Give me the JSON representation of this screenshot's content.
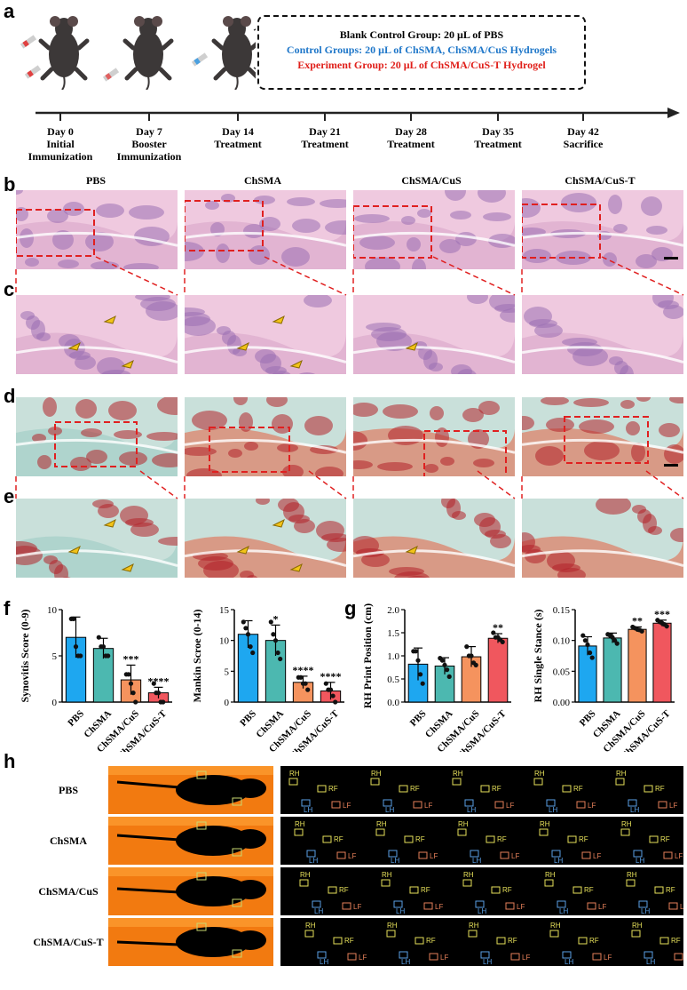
{
  "panel_labels": {
    "a": "a",
    "b": "b",
    "c": "c",
    "d": "d",
    "e": "e",
    "f": "f",
    "g": "g",
    "h": "h"
  },
  "groups_box": {
    "blank": "Blank Control Group: 20 μL of PBS",
    "control": "Control Groups: 20 μL of ChSMA, ChSMA/CuS Hydrogels",
    "experiment": "Experiment Group: 20 μL of ChSMA/CuS-T Hydrogel",
    "colors": {
      "blank": "#000000",
      "control": "#1f77c9",
      "experiment": "#e0201b"
    }
  },
  "timeline": [
    {
      "day": "Day 0",
      "event": "Initial Immunization"
    },
    {
      "day": "Day 7",
      "event": "Booster Immunization"
    },
    {
      "day": "Day 14",
      "event": "Treatment"
    },
    {
      "day": "Day 21",
      "event": "Treatment"
    },
    {
      "day": "Day 28",
      "event": "Treatment"
    },
    {
      "day": "Day 35",
      "event": "Treatment"
    },
    {
      "day": "Day 42",
      "event": "Sacrifice"
    }
  ],
  "histology_columns": [
    "PBS",
    "ChSMA",
    "ChSMA/CuS",
    "ChSMA/CuS-T"
  ],
  "gait_rows": [
    "PBS",
    "ChSMA",
    "ChSMA/CuS",
    "ChSMA/CuS-T"
  ],
  "gait_labels": {
    "rh": "RH",
    "rf": "RF",
    "lh": "LH",
    "lf": "LF"
  },
  "bar_colors": [
    "#1ea7f0",
    "#4cb8b0",
    "#f5935e",
    "#f0575e"
  ],
  "chart_data": [
    {
      "type": "bar",
      "ylabel": "Synovitis Score (0-9)",
      "categories": [
        "PBS",
        "ChSMA",
        "ChSMA/CuS",
        "ChSMA/CuS-T"
      ],
      "values": [
        7.0,
        5.8,
        2.4,
        1.0
      ],
      "errors": [
        2.2,
        1.1,
        1.6,
        0.6
      ],
      "ylim": [
        0,
        10
      ],
      "yticks": [
        0,
        5,
        10
      ],
      "significance": [
        "",
        "",
        "***",
        "****"
      ],
      "points": [
        [
          9,
          9,
          6,
          5,
          5
        ],
        [
          7,
          6,
          6,
          5,
          5
        ],
        [
          3,
          3,
          2,
          1,
          0
        ],
        [
          2,
          1,
          1,
          0,
          0
        ]
      ]
    },
    {
      "type": "bar",
      "ylabel": "Mankin Scroe (0-14)",
      "categories": [
        "PBS",
        "ChSMA",
        "ChSMA/CuS",
        "ChSMA/CuS-T"
      ],
      "values": [
        11.0,
        10.0,
        3.2,
        1.8
      ],
      "errors": [
        2.2,
        2.5,
        1.0,
        1.4
      ],
      "ylim": [
        0,
        15
      ],
      "yticks": [
        0,
        5,
        10,
        15
      ],
      "significance": [
        "",
        "*",
        "****",
        "****"
      ],
      "points": [
        [
          13,
          12,
          11,
          9,
          8
        ],
        [
          13,
          11,
          10,
          8,
          7
        ],
        [
          4,
          4,
          3,
          3,
          2
        ],
        [
          3,
          2,
          2,
          1,
          0
        ]
      ]
    },
    {
      "type": "bar",
      "ylabel": "RH Print Position (cm)",
      "categories": [
        "PBS",
        "ChSMA",
        "ChSMA/CuS",
        "ChSMA/CuS-T"
      ],
      "values": [
        0.82,
        0.78,
        0.98,
        1.38
      ],
      "errors": [
        0.35,
        0.18,
        0.22,
        0.1
      ],
      "ylim": [
        0,
        2.0
      ],
      "yticks": [
        0.0,
        0.5,
        1.0,
        1.5,
        2.0
      ],
      "significance": [
        "",
        "",
        "",
        "**"
      ],
      "points": [
        [
          1.1,
          1.1,
          0.9,
          0.6,
          0.4
        ],
        [
          0.95,
          0.9,
          0.8,
          0.7,
          0.55
        ],
        [
          1.2,
          1.0,
          1.0,
          0.85,
          0.8
        ],
        [
          1.5,
          1.4,
          1.4,
          1.35,
          1.3
        ]
      ]
    },
    {
      "type": "bar",
      "ylabel": "RH Single Stance (s)",
      "categories": [
        "PBS",
        "ChSMA",
        "ChSMA/CuS",
        "ChSMA/CuS-T"
      ],
      "values": [
        0.091,
        0.104,
        0.118,
        0.128
      ],
      "errors": [
        0.015,
        0.008,
        0.004,
        0.005
      ],
      "ylim": [
        0,
        0.15
      ],
      "yticks": [
        0.0,
        0.05,
        0.1,
        0.15
      ],
      "significance": [
        "",
        "",
        "**",
        "***"
      ],
      "points": [
        [
          0.108,
          0.1,
          0.093,
          0.08,
          0.072
        ],
        [
          0.11,
          0.108,
          0.105,
          0.1,
          0.095
        ],
        [
          0.122,
          0.12,
          0.118,
          0.117,
          0.115
        ],
        [
          0.133,
          0.13,
          0.128,
          0.126,
          0.123
        ]
      ]
    }
  ]
}
